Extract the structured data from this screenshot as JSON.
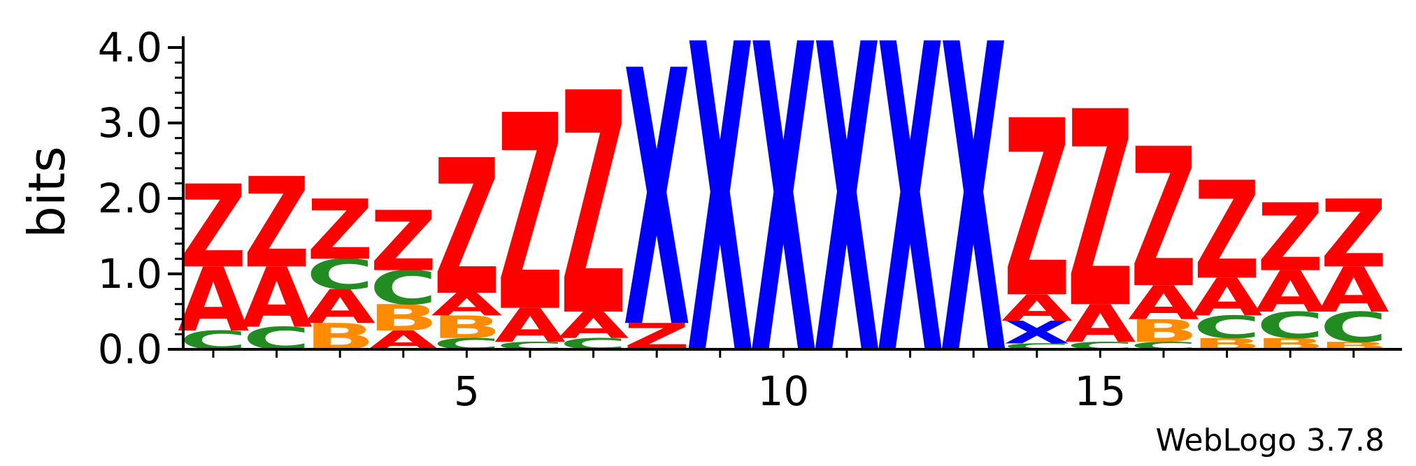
{
  "chart_data": {
    "type": "sequence-logo",
    "ylabel": "bits",
    "ylim": [
      0,
      4
    ],
    "yticks": [
      "0.0",
      "1.0",
      "2.0",
      "3.0",
      "4.0"
    ],
    "xticks": [
      5,
      10,
      15
    ],
    "positions": 19,
    "colors": {
      "Z": "#ff0000",
      "A": "#ff0000",
      "X": "#0000ff",
      "C": "#228b22",
      "B": "#ff8c00"
    },
    "columns": [
      {
        "pos": 1,
        "stack": [
          {
            "letter": "C",
            "bits": 0.25
          },
          {
            "letter": "A",
            "bits": 0.85
          },
          {
            "letter": "Z",
            "bits": 1.1
          }
        ]
      },
      {
        "pos": 2,
        "stack": [
          {
            "letter": "C",
            "bits": 0.3
          },
          {
            "letter": "A",
            "bits": 0.8
          },
          {
            "letter": "Z",
            "bits": 1.2
          }
        ]
      },
      {
        "pos": 3,
        "stack": [
          {
            "letter": "B",
            "bits": 0.35
          },
          {
            "letter": "A",
            "bits": 0.45
          },
          {
            "letter": "C",
            "bits": 0.4
          },
          {
            "letter": "Z",
            "bits": 0.8
          }
        ]
      },
      {
        "pos": 4,
        "stack": [
          {
            "letter": "A",
            "bits": 0.25
          },
          {
            "letter": "B",
            "bits": 0.35
          },
          {
            "letter": "C",
            "bits": 0.45
          },
          {
            "letter": "Z",
            "bits": 0.8
          }
        ]
      },
      {
        "pos": 5,
        "stack": [
          {
            "letter": "C",
            "bits": 0.15
          },
          {
            "letter": "B",
            "bits": 0.3
          },
          {
            "letter": "A",
            "bits": 0.3
          },
          {
            "letter": "Z",
            "bits": 1.8
          }
        ]
      },
      {
        "pos": 6,
        "stack": [
          {
            "letter": "C",
            "bits": 0.1
          },
          {
            "letter": "A",
            "bits": 0.45
          },
          {
            "letter": "Z",
            "bits": 2.6
          }
        ]
      },
      {
        "pos": 7,
        "stack": [
          {
            "letter": "C",
            "bits": 0.15
          },
          {
            "letter": "A",
            "bits": 0.35
          },
          {
            "letter": "Z",
            "bits": 2.95
          }
        ]
      },
      {
        "pos": 8,
        "stack": [
          {
            "letter": "Z",
            "bits": 0.35
          },
          {
            "letter": "X",
            "bits": 3.4
          }
        ]
      },
      {
        "pos": 9,
        "stack": [
          {
            "letter": "X",
            "bits": 4.1
          }
        ]
      },
      {
        "pos": 10,
        "stack": [
          {
            "letter": "X",
            "bits": 4.1
          }
        ]
      },
      {
        "pos": 11,
        "stack": [
          {
            "letter": "X",
            "bits": 4.1
          }
        ]
      },
      {
        "pos": 12,
        "stack": [
          {
            "letter": "X",
            "bits": 4.1
          }
        ]
      },
      {
        "pos": 13,
        "stack": [
          {
            "letter": "X",
            "bits": 4.1
          }
        ]
      },
      {
        "pos": 14,
        "stack": [
          {
            "letter": "C",
            "bits": 0.08
          },
          {
            "letter": "X",
            "bits": 0.3
          },
          {
            "letter": "A",
            "bits": 0.35
          },
          {
            "letter": "Z",
            "bits": 2.35
          }
        ]
      },
      {
        "pos": 15,
        "stack": [
          {
            "letter": "C",
            "bits": 0.1
          },
          {
            "letter": "A",
            "bits": 0.5
          },
          {
            "letter": "Z",
            "bits": 2.6
          }
        ]
      },
      {
        "pos": 16,
        "stack": [
          {
            "letter": "C",
            "bits": 0.1
          },
          {
            "letter": "B",
            "bits": 0.3
          },
          {
            "letter": "A",
            "bits": 0.45
          },
          {
            "letter": "Z",
            "bits": 1.85
          }
        ]
      },
      {
        "pos": 17,
        "stack": [
          {
            "letter": "B",
            "bits": 0.15
          },
          {
            "letter": "C",
            "bits": 0.3
          },
          {
            "letter": "A",
            "bits": 0.5
          },
          {
            "letter": "Z",
            "bits": 1.3
          }
        ]
      },
      {
        "pos": 18,
        "stack": [
          {
            "letter": "B",
            "bits": 0.15
          },
          {
            "letter": "C",
            "bits": 0.35
          },
          {
            "letter": "A",
            "bits": 0.55
          },
          {
            "letter": "Z",
            "bits": 0.9
          }
        ]
      },
      {
        "pos": 19,
        "stack": [
          {
            "letter": "B",
            "bits": 0.1
          },
          {
            "letter": "C",
            "bits": 0.4
          },
          {
            "letter": "A",
            "bits": 0.6
          },
          {
            "letter": "Z",
            "bits": 0.9
          }
        ]
      }
    ]
  },
  "credit": "WebLogo 3.7.8"
}
